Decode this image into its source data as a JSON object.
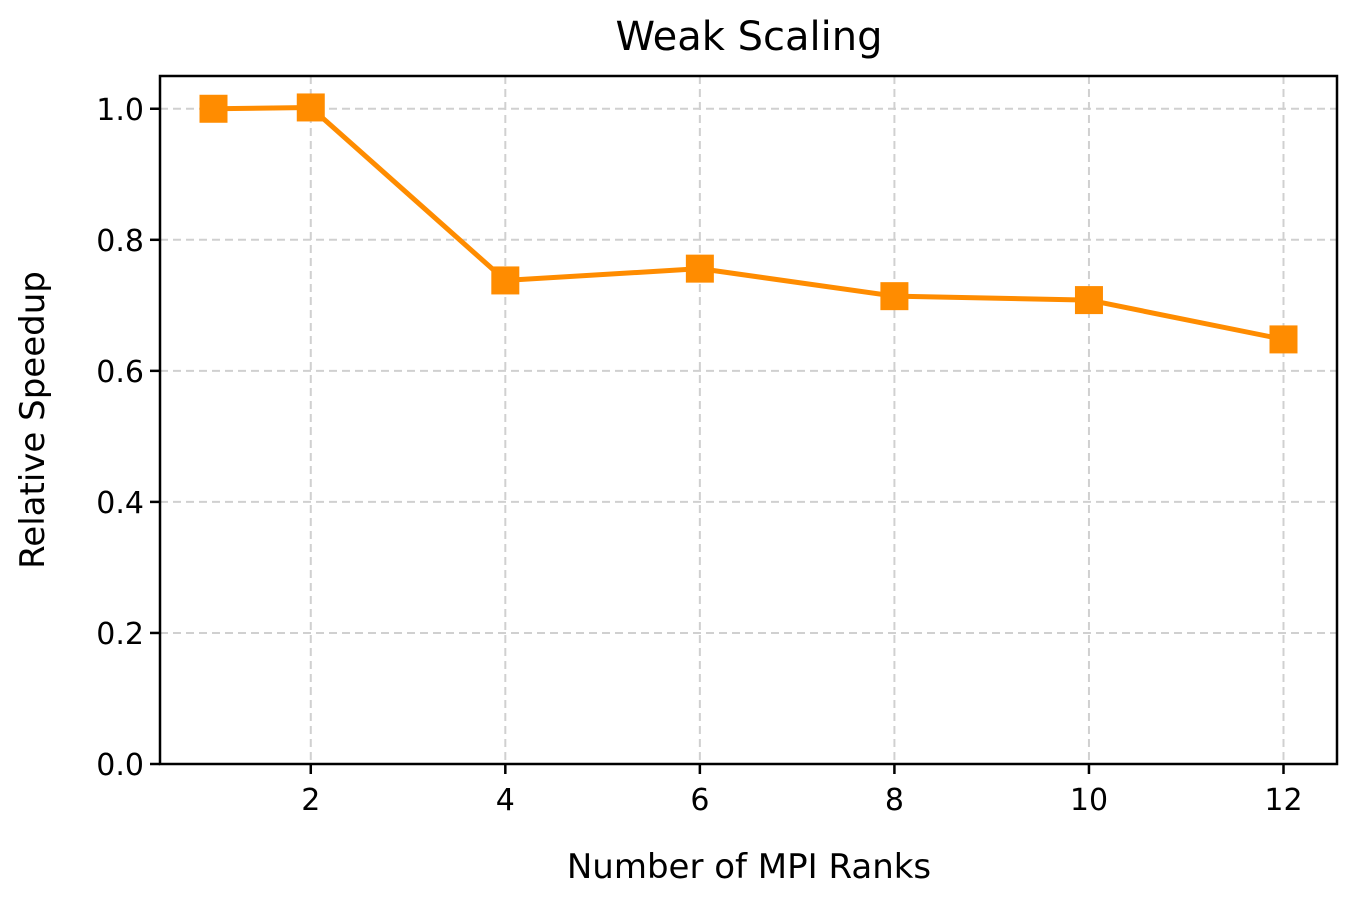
{
  "chart_data": {
    "type": "line",
    "title": "Weak Scaling",
    "xlabel": "Number of MPI Ranks",
    "ylabel": "Relative Speedup",
    "xlim": [
      0.45,
      12.55
    ],
    "ylim": [
      0.0,
      1.05
    ],
    "xticks": [
      2,
      4,
      6,
      8,
      10,
      12
    ],
    "xtick_labels": [
      "2",
      "4",
      "6",
      "8",
      "10",
      "12"
    ],
    "yticks": [
      0.0,
      0.2,
      0.4,
      0.6,
      0.8,
      1.0
    ],
    "ytick_labels": [
      "0.0",
      "0.2",
      "0.4",
      "0.6",
      "0.8",
      "1.0"
    ],
    "grid": true,
    "series": [
      {
        "x": [
          1,
          2,
          4,
          6,
          8,
          10,
          12
        ],
        "y": [
          1.0,
          1.002,
          0.738,
          0.756,
          0.714,
          0.708,
          0.648
        ],
        "color": "#ff8c00",
        "marker": "square"
      }
    ]
  }
}
